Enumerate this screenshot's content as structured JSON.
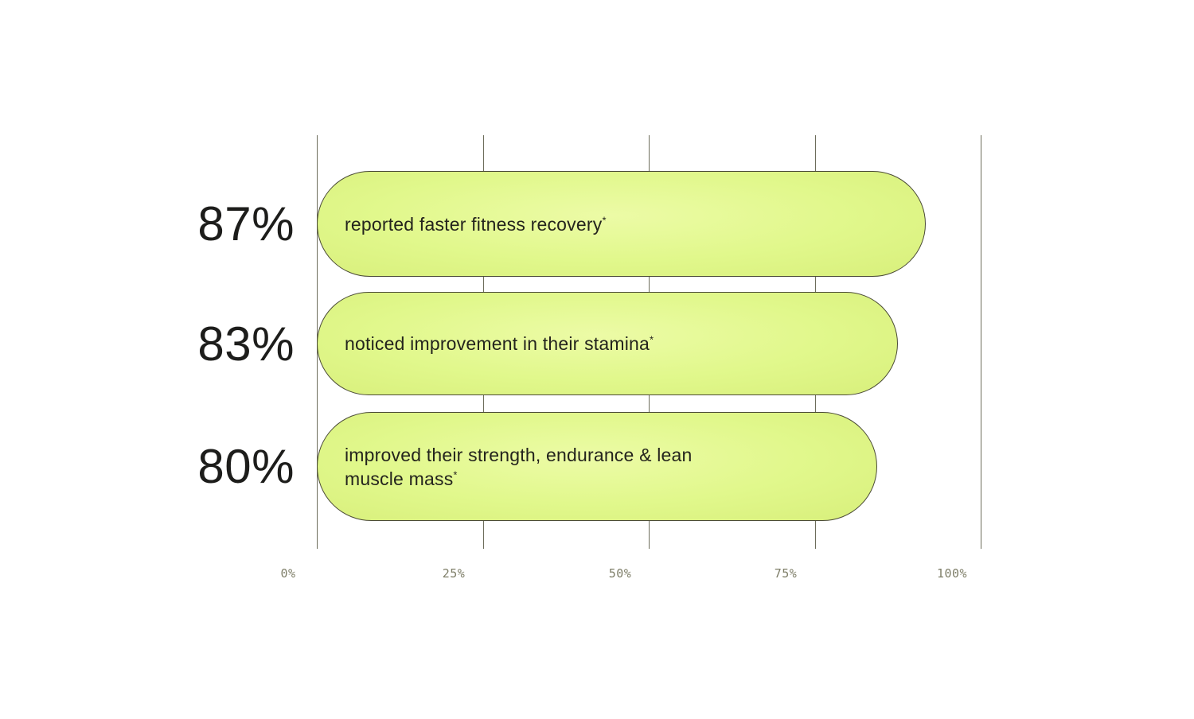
{
  "chart_data": {
    "type": "bar",
    "orientation": "horizontal",
    "title": "",
    "xlabel": "",
    "ylabel": "",
    "xlim": [
      0,
      100
    ],
    "grid": true,
    "x_tick_labels": [
      "0%",
      "25%",
      "50%",
      "75%",
      "100%"
    ],
    "bars": [
      {
        "value": 87,
        "value_label": "87%",
        "label": "reported faster fitness recovery",
        "footnote_marker": "*"
      },
      {
        "value": 83,
        "value_label": "83%",
        "label": "noticed improvement in their stamina",
        "footnote_marker": "*"
      },
      {
        "value": 80,
        "value_label": "80%",
        "label": "improved their strength, endurance & lean muscle mass",
        "footnote_marker": "*"
      }
    ],
    "colors": {
      "background": "#ffffff",
      "bar_fill": "#e1f88c",
      "bar_fill_edge": "#d8ef7b",
      "bar_border": "#4b4b37",
      "grid_line": "#6d6d5b",
      "tick_text": "#7e7e68",
      "bar_text": "#24241d",
      "value_text": "#1d1d1b"
    }
  }
}
